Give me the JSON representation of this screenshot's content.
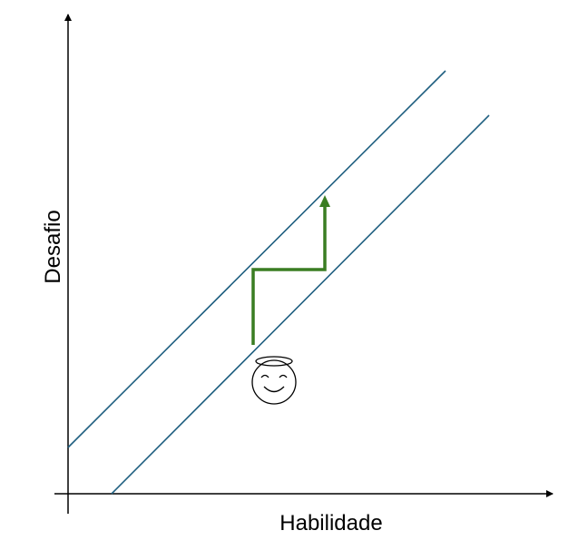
{
  "axes": {
    "x_label": "Habilidade",
    "y_label": "Desafio"
  },
  "colors": {
    "axis": "#000000",
    "channel_lines": "#1f5f80",
    "path_arrow": "#3a7d22"
  },
  "icons": {
    "face": "smiling-face-with-halo-icon"
  }
}
